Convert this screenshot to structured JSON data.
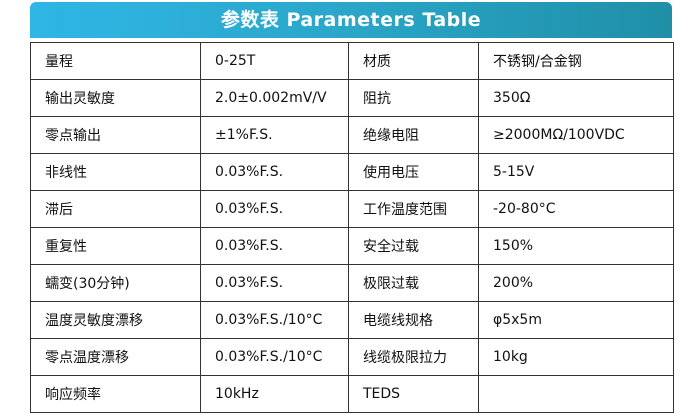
{
  "header": {
    "title": "参数表 Parameters Table"
  },
  "table": {
    "rows": [
      [
        "量程",
        "0-25T",
        "材质",
        "不锈钢/合金钢"
      ],
      [
        "输出灵敏度",
        "2.0±0.002mV/V",
        "阻抗",
        "350Ω"
      ],
      [
        "零点输出",
        "±1%F.S.",
        "绝缘电阻",
        "≥2000MΩ/100VDC"
      ],
      [
        "非线性",
        "0.03%F.S.",
        "使用电压",
        "5-15V"
      ],
      [
        "滞后",
        "0.03%F.S.",
        "工作温度范围",
        "-20-80°C"
      ],
      [
        "重复性",
        "0.03%F.S.",
        "安全过载",
        "150%"
      ],
      [
        "蠕变(30分钟)",
        "0.03%F.S.",
        "极限过载",
        "200%"
      ],
      [
        "温度灵敏度漂移",
        "0.03%F.S./10°C",
        "电缆线规格",
        "φ5x5m"
      ],
      [
        "零点温度漂移",
        "0.03%F.S./10°C",
        "线缆极限拉力",
        "10kg"
      ],
      [
        "响应频率",
        "10kHz",
        "TEDS"
      ]
    ]
  }
}
